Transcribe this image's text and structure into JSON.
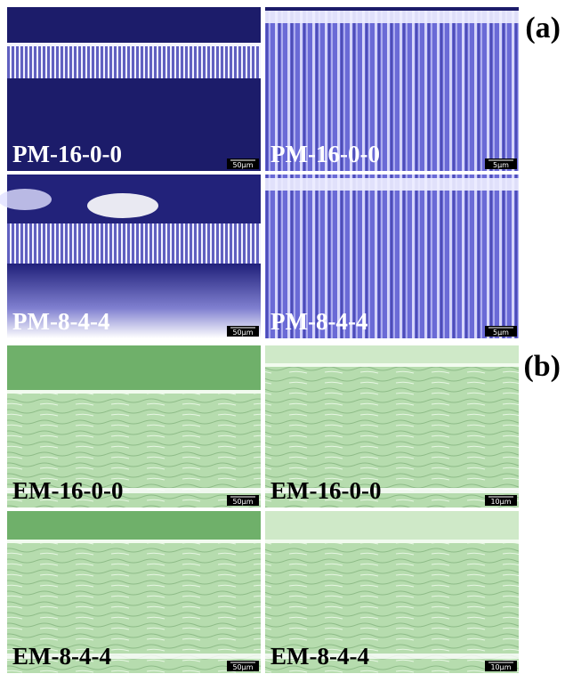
{
  "figure": {
    "panels": [
      {
        "label": "(a)",
        "images": [
          {
            "caption": "PM-16-0-0",
            "scale_bar": "50μm"
          },
          {
            "caption": "PM-16-0-0",
            "scale_bar": "5μm"
          },
          {
            "caption": "PM-8-4-4",
            "scale_bar": "50μm"
          },
          {
            "caption": "PM-8-4-4",
            "scale_bar": "5μm"
          }
        ]
      },
      {
        "label": "(b)",
        "images": [
          {
            "caption": "EM-16-0-0",
            "scale_bar": "50μm"
          },
          {
            "caption": "EM-16-0-0",
            "scale_bar": "10μm"
          },
          {
            "caption": "EM-8-4-4",
            "scale_bar": "50μm"
          },
          {
            "caption": "EM-8-4-4",
            "scale_bar": "10μm"
          }
        ]
      }
    ]
  }
}
